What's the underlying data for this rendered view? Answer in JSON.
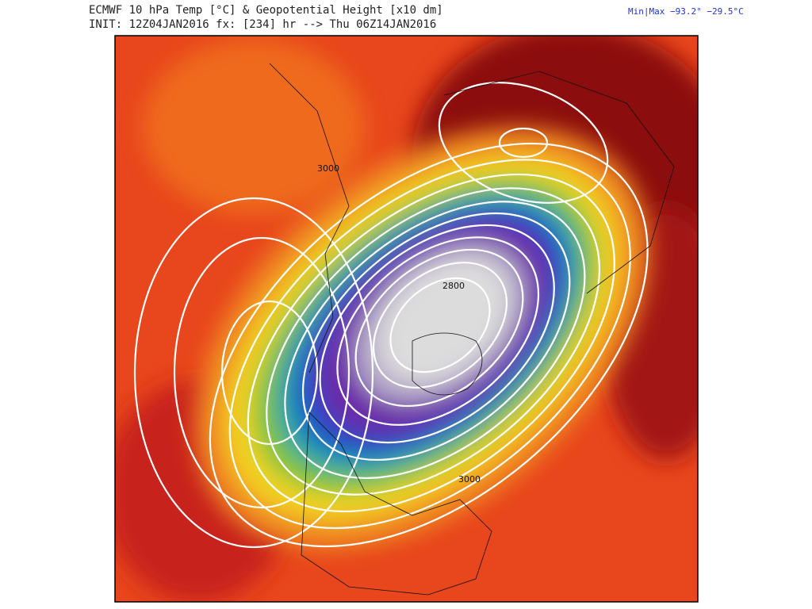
{
  "header": {
    "title": "ECMWF 10 hPa Temp [°C] & Geopotential Height [x10 dm]",
    "subtitle": "INIT: 12Z04JAN2016 fx: [234] hr --> Thu 06Z14JAN2016",
    "min_max": "Min|Max −93.2° −29.5°C"
  },
  "map": {
    "contour_labels": [
      "3000",
      "2800",
      "3000"
    ]
  }
}
